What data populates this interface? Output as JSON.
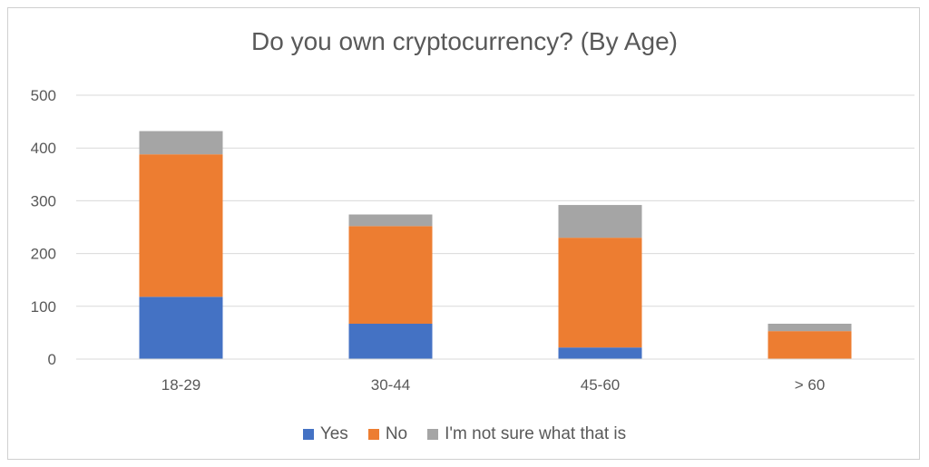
{
  "chart_data": {
    "type": "bar",
    "stacked": true,
    "title": "Do you own cryptocurrency? (By Age)",
    "xlabel": "",
    "ylabel": "",
    "ylim": [
      0,
      500
    ],
    "yticks": [
      0,
      100,
      200,
      300,
      400,
      500
    ],
    "grid": true,
    "legend_position": "bottom",
    "categories": [
      "18-29",
      "30-44",
      "45-60",
      "> 60"
    ],
    "series": [
      {
        "name": "Yes",
        "color": "#4472C4",
        "values": [
          118,
          67,
          22,
          0
        ]
      },
      {
        "name": "No",
        "color": "#ED7D31",
        "values": [
          270,
          185,
          208,
          53
        ]
      },
      {
        "name": "I'm not sure what that is",
        "color": "#A5A5A5",
        "values": [
          44,
          22,
          62,
          14
        ]
      }
    ]
  }
}
